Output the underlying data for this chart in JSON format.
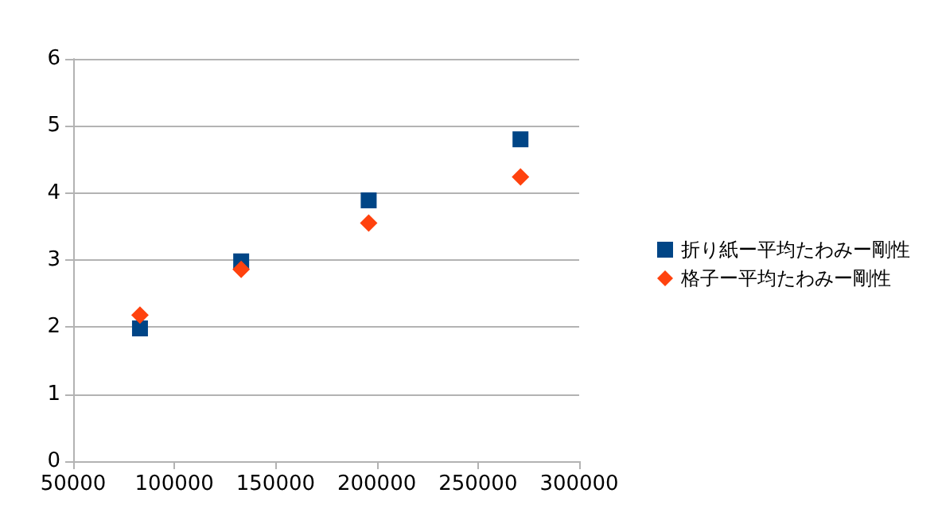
{
  "chart_data": {
    "type": "scatter",
    "xlim": [
      50000,
      300000
    ],
    "xticks": [
      50000,
      100000,
      150000,
      200000,
      250000,
      300000
    ],
    "ylim": [
      0,
      6
    ],
    "yticks": [
      0,
      1,
      2,
      3,
      4,
      5,
      6
    ],
    "grid": "y",
    "legend": "right",
    "series": [
      {
        "name": "折り紙ー平均たわみー剛性",
        "color": "#004586",
        "marker": "square",
        "x": [
          83000,
          133000,
          196000,
          271000
        ],
        "values": [
          1.98,
          2.98,
          3.89,
          4.8
        ]
      },
      {
        "name": "格子ー平均たわみー剛性",
        "color": "#ff420e",
        "marker": "diamond",
        "x": [
          83000,
          133000,
          196000,
          271000
        ],
        "values": [
          2.18,
          2.86,
          3.55,
          4.24
        ]
      }
    ]
  }
}
